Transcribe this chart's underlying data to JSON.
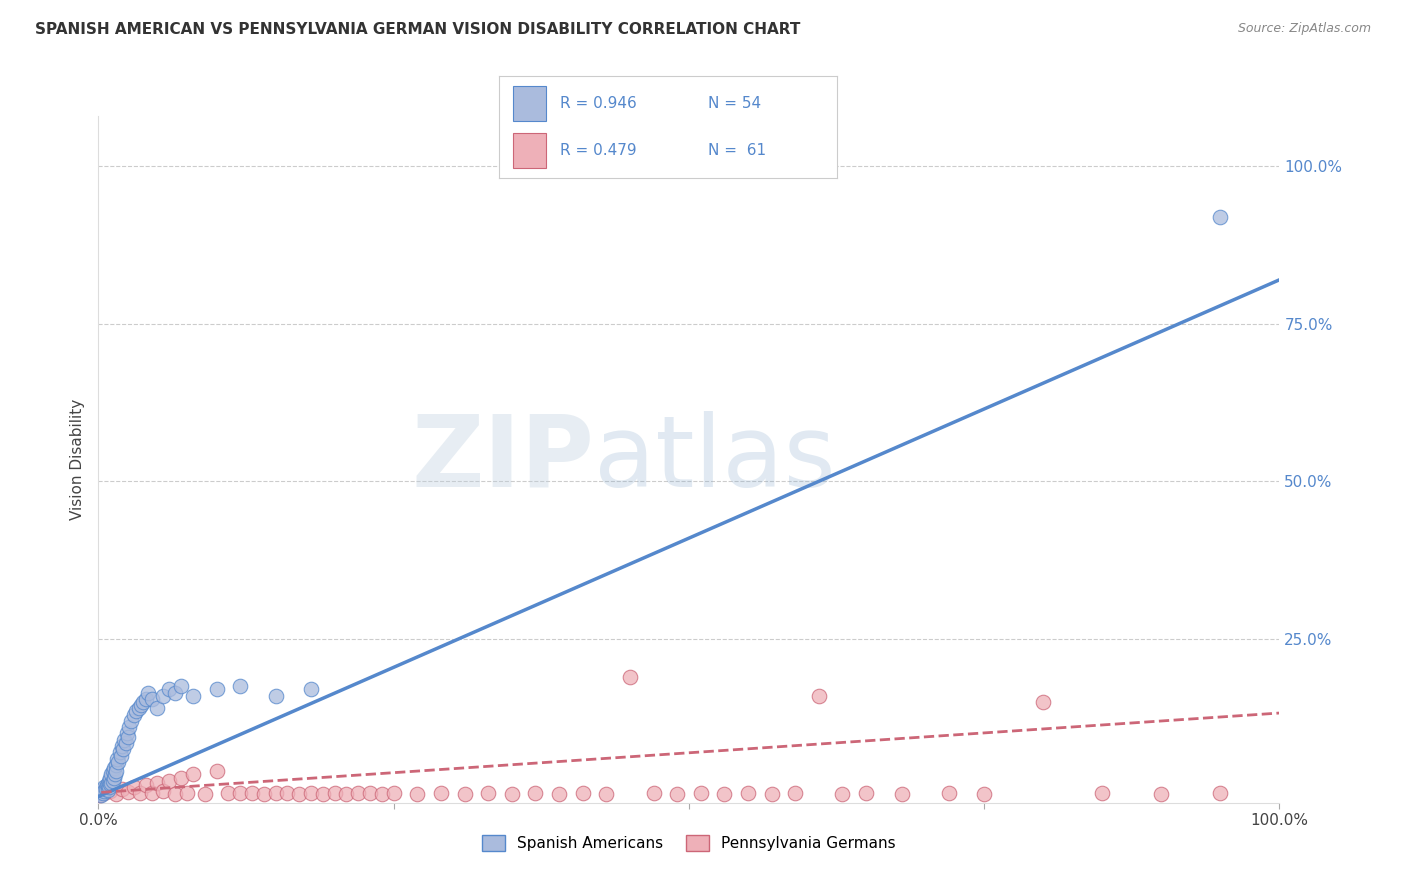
{
  "title": "SPANISH AMERICAN VS PENNSYLVANIA GERMAN VISION DISABILITY CORRELATION CHART",
  "source": "Source: ZipAtlas.com",
  "ylabel": "Vision Disability",
  "ytick_labels": [
    "100.0%",
    "75.0%",
    "50.0%",
    "25.0%"
  ],
  "ytick_values": [
    1.0,
    0.75,
    0.5,
    0.25
  ],
  "xlim": [
    0.0,
    1.0
  ],
  "ylim": [
    -0.01,
    1.08
  ],
  "background_color": "#ffffff",
  "grid_color": "#cccccc",
  "blue_color": "#5588cc",
  "blue_fill": "#aabbdd",
  "pink_color": "#cc6677",
  "pink_fill": "#eeb0b8",
  "blue_R": 0.946,
  "blue_N": 54,
  "pink_R": 0.479,
  "pink_N": 61,
  "legend_label_blue": "Spanish Americans",
  "legend_label_pink": "Pennsylvania Germans",
  "watermark_zip": "ZIP",
  "watermark_atlas": "atlas",
  "blue_scatter_x": [
    0.001,
    0.002,
    0.003,
    0.004,
    0.005,
    0.005,
    0.006,
    0.007,
    0.008,
    0.008,
    0.009,
    0.009,
    0.01,
    0.01,
    0.011,
    0.011,
    0.012,
    0.012,
    0.013,
    0.013,
    0.014,
    0.015,
    0.015,
    0.016,
    0.017,
    0.018,
    0.019,
    0.02,
    0.021,
    0.022,
    0.023,
    0.024,
    0.025,
    0.026,
    0.028,
    0.03,
    0.032,
    0.034,
    0.036,
    0.038,
    0.04,
    0.042,
    0.045,
    0.05,
    0.055,
    0.06,
    0.065,
    0.07,
    0.08,
    0.1,
    0.12,
    0.15,
    0.18,
    0.95
  ],
  "blue_scatter_y": [
    0.005,
    0.003,
    0.01,
    0.006,
    0.015,
    0.008,
    0.012,
    0.018,
    0.01,
    0.02,
    0.015,
    0.025,
    0.02,
    0.03,
    0.022,
    0.035,
    0.025,
    0.04,
    0.03,
    0.045,
    0.035,
    0.05,
    0.04,
    0.06,
    0.055,
    0.07,
    0.065,
    0.08,
    0.075,
    0.09,
    0.085,
    0.1,
    0.095,
    0.11,
    0.12,
    0.13,
    0.135,
    0.14,
    0.145,
    0.15,
    0.155,
    0.165,
    0.155,
    0.14,
    0.16,
    0.17,
    0.165,
    0.175,
    0.16,
    0.17,
    0.175,
    0.16,
    0.17,
    0.92
  ],
  "pink_scatter_x": [
    0.001,
    0.005,
    0.01,
    0.015,
    0.02,
    0.025,
    0.03,
    0.035,
    0.04,
    0.045,
    0.05,
    0.055,
    0.06,
    0.065,
    0.07,
    0.075,
    0.08,
    0.09,
    0.1,
    0.11,
    0.12,
    0.13,
    0.14,
    0.15,
    0.16,
    0.17,
    0.18,
    0.19,
    0.2,
    0.21,
    0.22,
    0.23,
    0.24,
    0.25,
    0.27,
    0.29,
    0.31,
    0.33,
    0.35,
    0.37,
    0.39,
    0.41,
    0.43,
    0.45,
    0.47,
    0.49,
    0.51,
    0.53,
    0.55,
    0.57,
    0.59,
    0.61,
    0.63,
    0.65,
    0.68,
    0.72,
    0.75,
    0.8,
    0.85,
    0.9,
    0.95
  ],
  "pink_scatter_y": [
    0.003,
    0.005,
    0.008,
    0.004,
    0.012,
    0.007,
    0.015,
    0.005,
    0.018,
    0.006,
    0.022,
    0.008,
    0.025,
    0.004,
    0.03,
    0.005,
    0.035,
    0.004,
    0.04,
    0.005,
    0.005,
    0.006,
    0.004,
    0.005,
    0.006,
    0.004,
    0.005,
    0.004,
    0.006,
    0.004,
    0.005,
    0.006,
    0.004,
    0.005,
    0.004,
    0.005,
    0.004,
    0.005,
    0.004,
    0.005,
    0.004,
    0.005,
    0.004,
    0.19,
    0.005,
    0.004,
    0.005,
    0.004,
    0.005,
    0.004,
    0.005,
    0.16,
    0.004,
    0.005,
    0.004,
    0.005,
    0.004,
    0.15,
    0.005,
    0.004,
    0.005
  ],
  "blue_line_x": [
    -0.01,
    1.0
  ],
  "blue_line_y": [
    -0.0082,
    0.82
  ],
  "pink_line_x": [
    -0.01,
    1.02
  ],
  "pink_line_y": [
    0.005,
    0.135
  ]
}
